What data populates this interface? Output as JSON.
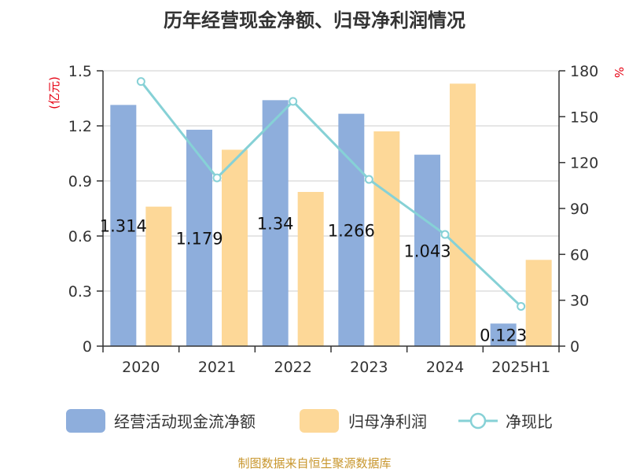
{
  "chart_data": {
    "type": "bar",
    "title": "历年经营现金净额、归母净利润情况",
    "categories": [
      "2020",
      "2021",
      "2022",
      "2023",
      "2024",
      "2025H1"
    ],
    "series": [
      {
        "name": "经营活动现金流净额",
        "type": "bar",
        "axis": "left",
        "color": "#8eaedc",
        "values": [
          1.314,
          1.179,
          1.34,
          1.266,
          1.043,
          0.123
        ]
      },
      {
        "name": "归母净利润",
        "type": "bar",
        "axis": "left",
        "color": "#fdd898",
        "values": [
          0.76,
          1.07,
          0.84,
          1.17,
          1.43,
          0.47
        ]
      },
      {
        "name": "净现比",
        "type": "line",
        "axis": "right",
        "color": "#86d1d6",
        "values": [
          173,
          110,
          160,
          109,
          73,
          26
        ]
      }
    ],
    "data_labels": [
      "1.314",
      "1.179",
      "1.34",
      "1.266",
      "1.043",
      "0.123"
    ],
    "y_left": {
      "unit": "(亿元)",
      "ticks": [
        "0",
        "0.3",
        "0.6",
        "0.9",
        "1.2",
        "1.5"
      ],
      "ylim": [
        0,
        1.5
      ]
    },
    "y_right": {
      "unit": "%",
      "ticks": [
        "0",
        "30",
        "60",
        "90",
        "120",
        "150",
        "180"
      ],
      "ylim": [
        0,
        180
      ]
    },
    "grid": true,
    "legend_position": "bottom"
  },
  "source_note": "制图数据来自恒生聚源数据库"
}
